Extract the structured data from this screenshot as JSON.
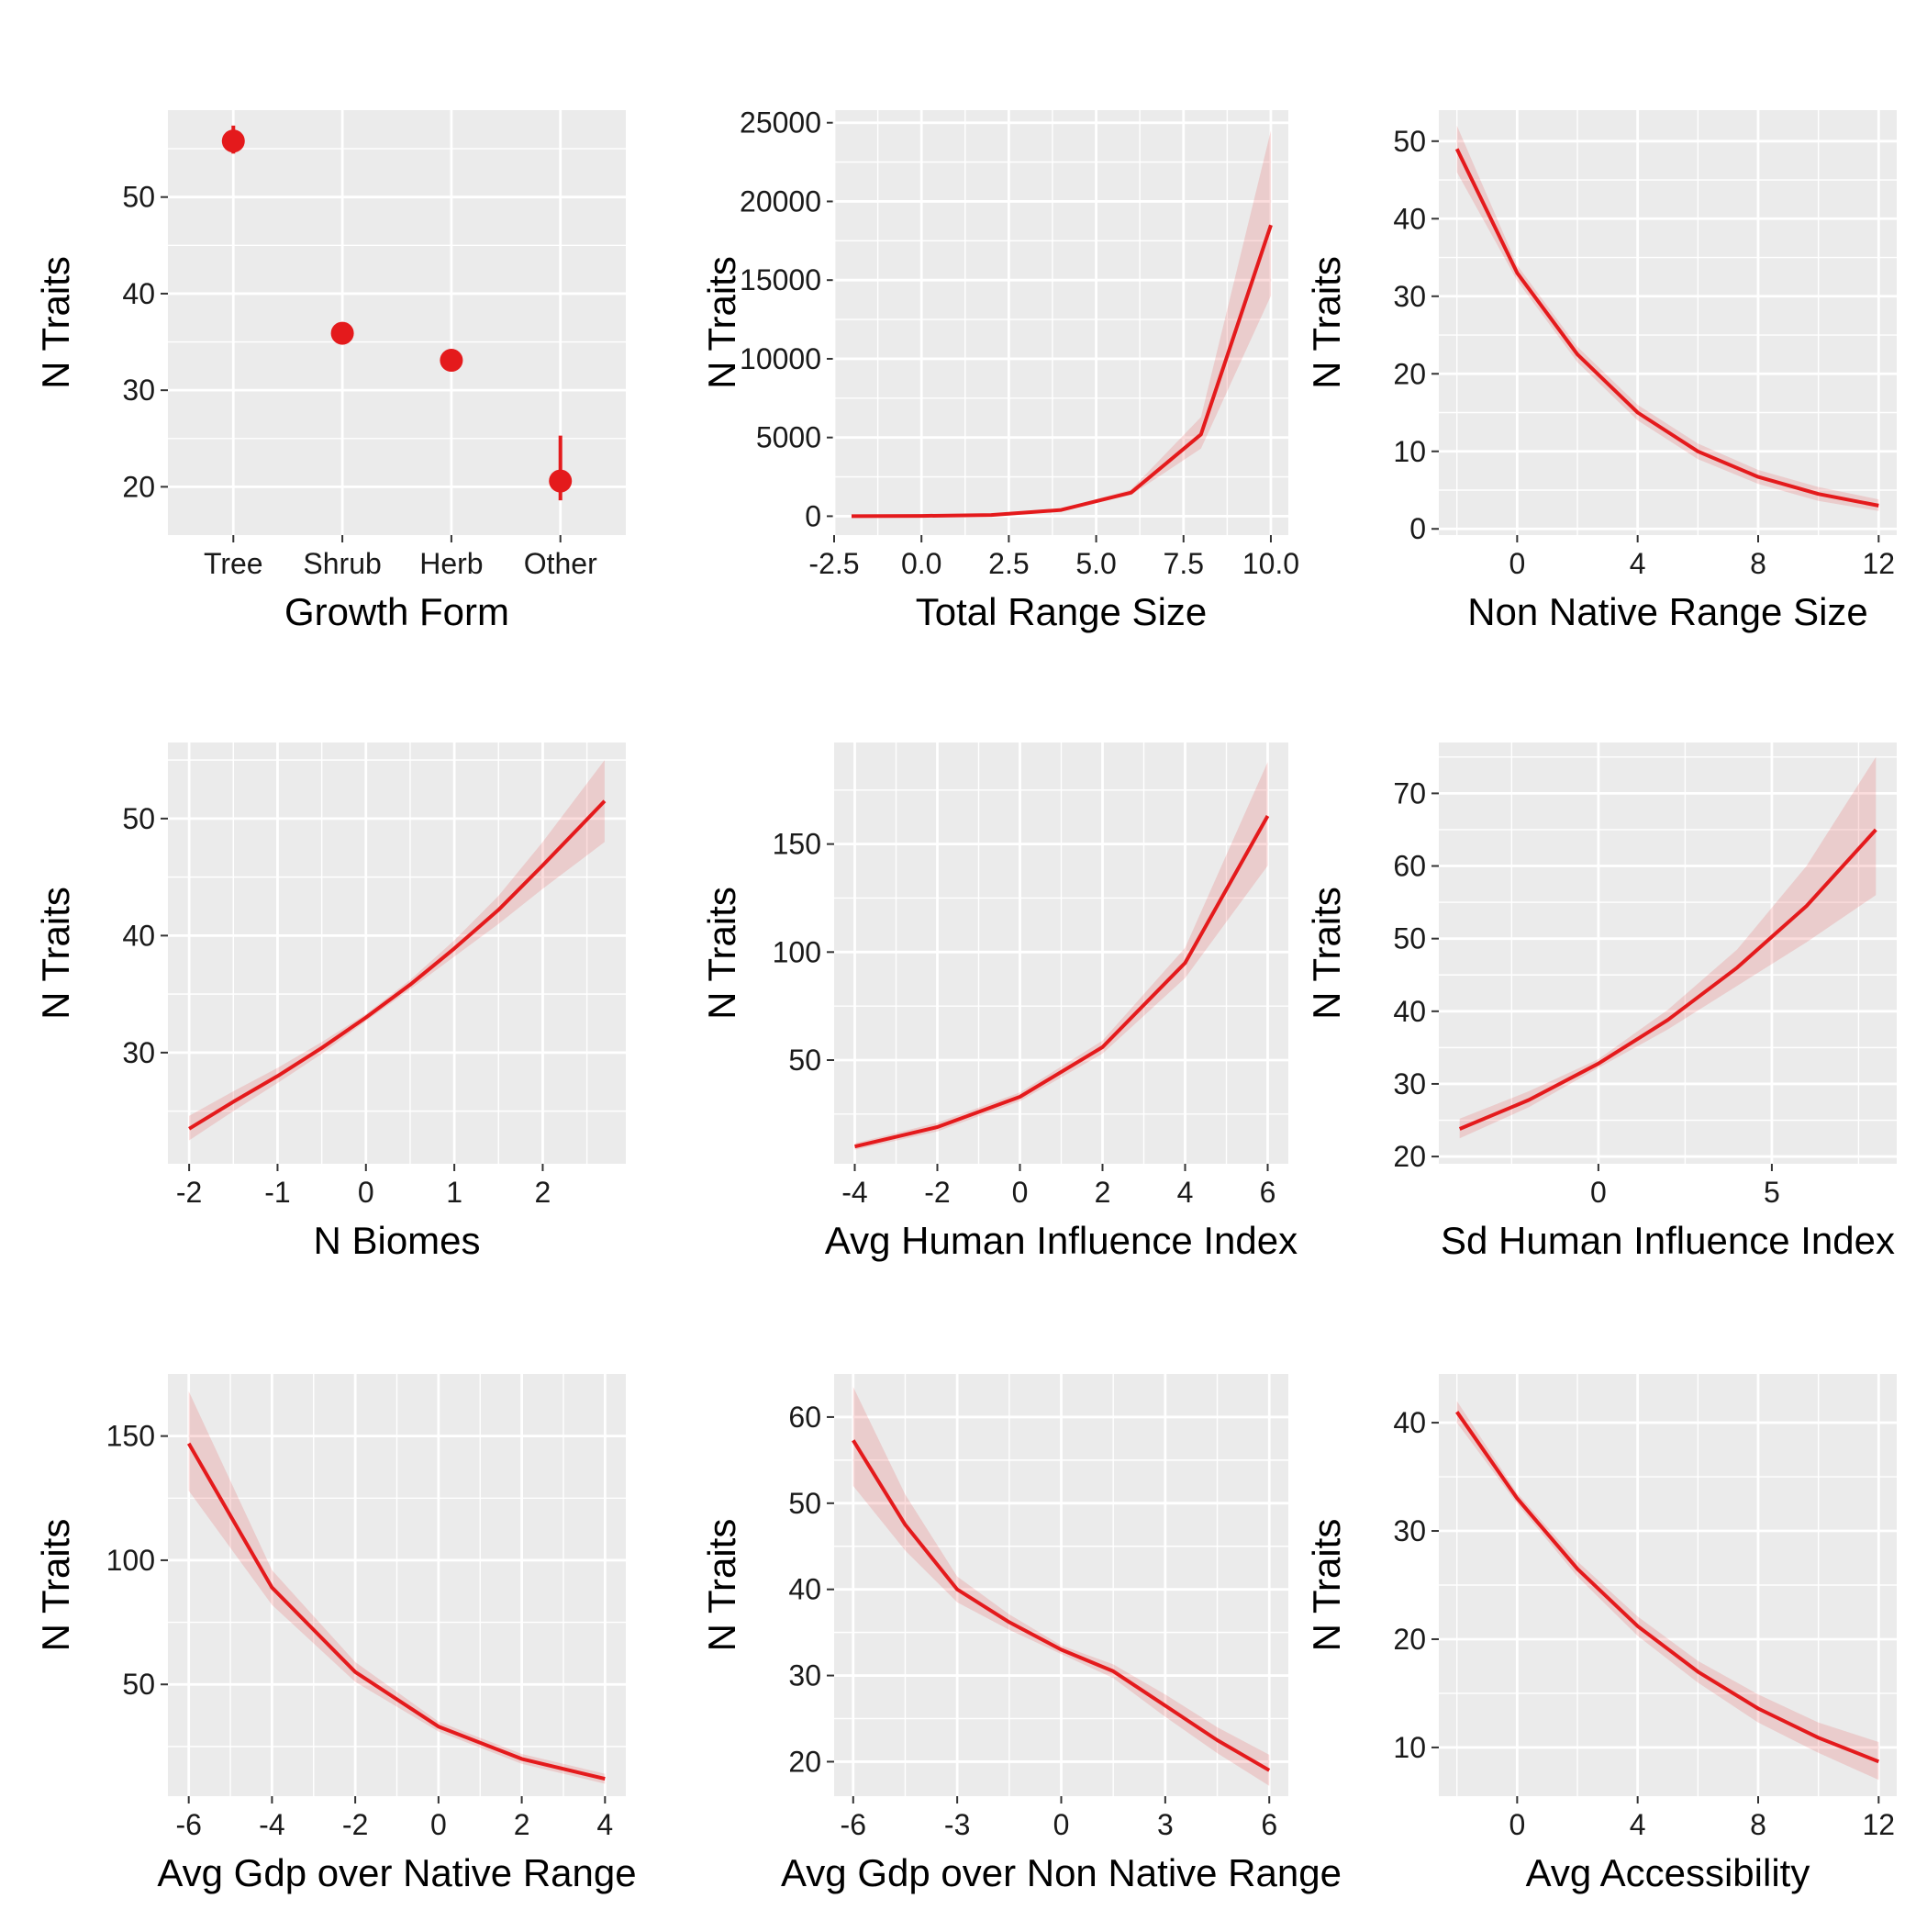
{
  "figure": {
    "accent_color": "#e41a1c",
    "ribbon_color": "#e41a1c",
    "panel_bg": "#ebebeb"
  },
  "chart_data": [
    {
      "type": "scatter",
      "categories": [
        "Tree",
        "Shrub",
        "Herb",
        "Other"
      ],
      "series": [
        {
          "values": [
            55.8,
            35.9,
            33.1,
            20.6
          ],
          "lower": [
            54.5,
            35.0,
            32.4,
            18.6
          ],
          "upper": [
            57.4,
            36.8,
            33.9,
            25.3
          ]
        }
      ],
      "xlabel": "Growth Form",
      "ylabel": "N Traits",
      "ylim": [
        15,
        59
      ],
      "yticks": [
        20,
        30,
        40,
        50
      ],
      "grid": true
    },
    {
      "type": "line",
      "x": [
        -2,
        0,
        2,
        4,
        6,
        8,
        10
      ],
      "series": [
        {
          "values": [
            2,
            20,
            80,
            400,
            1500,
            5200,
            18500
          ],
          "lower": [
            0,
            10,
            60,
            330,
            1350,
            4300,
            14000
          ],
          "upper": [
            5,
            30,
            100,
            480,
            1700,
            6300,
            24500
          ]
        }
      ],
      "xlabel": "Total Range Size",
      "ylabel": "N Traits",
      "xlim": [
        -2.5,
        10.5
      ],
      "ylim": [
        -1200,
        25800
      ],
      "xticks": [
        -2.5,
        0.0,
        2.5,
        5.0,
        7.5,
        10.0
      ],
      "xtick_labels": [
        "-2.5",
        "0.0",
        "2.5",
        "5.0",
        "7.5",
        "10.0"
      ],
      "yticks": [
        0,
        5000,
        10000,
        15000,
        20000,
        25000
      ],
      "grid": true
    },
    {
      "type": "line",
      "x": [
        -2,
        0,
        2,
        4,
        6,
        8,
        10,
        12
      ],
      "series": [
        {
          "values": [
            49,
            33,
            22.5,
            15,
            10,
            6.7,
            4.5,
            3
          ],
          "lower": [
            46,
            32,
            21.5,
            14,
            9,
            5.8,
            3.6,
            2.3
          ],
          "upper": [
            52,
            34,
            23.5,
            16,
            11,
            7.6,
            5.4,
            3.8
          ]
        }
      ],
      "xlabel": "Non Native Range Size",
      "ylabel": "N Traits",
      "xlim": [
        -2.6,
        12.6
      ],
      "ylim": [
        -0.8,
        54
      ],
      "xticks": [
        0,
        4,
        8,
        12
      ],
      "yticks": [
        0,
        10,
        20,
        30,
        40,
        50
      ],
      "grid": true
    },
    {
      "type": "line",
      "x": [
        -2,
        -1.5,
        -1,
        -0.5,
        0,
        0.5,
        1,
        1.5,
        2,
        2.7
      ],
      "series": [
        {
          "values": [
            23.5,
            25.8,
            28.0,
            30.4,
            33.0,
            35.8,
            38.9,
            42.2,
            46.0,
            51.5
          ],
          "lower": [
            22.5,
            25.0,
            27.4,
            29.9,
            32.7,
            35.4,
            38.2,
            41.0,
            44.0,
            48.0
          ],
          "upper": [
            24.6,
            26.7,
            28.7,
            30.9,
            33.3,
            36.2,
            39.6,
            43.4,
            48.0,
            55.0
          ]
        }
      ],
      "xlabel": "N Biomes",
      "ylabel": "N Traits",
      "xlim": [
        -2.24,
        2.94
      ],
      "ylim": [
        20.5,
        56.5
      ],
      "xticks": [
        -2,
        -1,
        0,
        1,
        2
      ],
      "yticks": [
        30,
        40,
        50
      ],
      "grid": true
    },
    {
      "type": "line",
      "x": [
        -4,
        -2,
        0,
        2,
        4,
        6
      ],
      "series": [
        {
          "values": [
            10,
            19,
            33,
            56,
            95,
            163
          ],
          "lower": [
            8.5,
            17,
            31,
            53,
            88,
            140
          ],
          "upper": [
            11.5,
            21,
            35,
            59,
            102,
            188
          ]
        }
      ],
      "xlabel": "Avg Human Influence Index",
      "ylabel": "N Traits",
      "xlim": [
        -4.5,
        6.5
      ],
      "ylim": [
        2,
        197
      ],
      "xticks": [
        -4,
        -2,
        0,
        2,
        4,
        6
      ],
      "yticks": [
        50,
        100,
        150
      ],
      "grid": true
    },
    {
      "type": "line",
      "x": [
        -4,
        -2,
        0,
        2,
        4,
        6,
        8
      ],
      "series": [
        {
          "values": [
            23.8,
            27.8,
            32.8,
            38.8,
            46,
            54.5,
            65
          ],
          "lower": [
            22.5,
            26.8,
            32.2,
            37.5,
            43.5,
            49.5,
            56
          ],
          "upper": [
            25.2,
            29,
            33.4,
            40.2,
            48.5,
            60,
            75
          ]
        }
      ],
      "xlabel": "Sd Human Influence Index",
      "ylabel": "N Traits",
      "xlim": [
        -4.6,
        8.6
      ],
      "ylim": [
        19,
        77
      ],
      "xticks": [
        0,
        5
      ],
      "yticks": [
        20,
        30,
        40,
        50,
        60,
        70
      ],
      "grid": true
    },
    {
      "type": "line",
      "x": [
        -6,
        -4,
        -2,
        0,
        2,
        4
      ],
      "series": [
        {
          "values": [
            147,
            89,
            55,
            33,
            20,
            12
          ],
          "lower": [
            128,
            82,
            51,
            31,
            18,
            10
          ],
          "upper": [
            168,
            96,
            59,
            35,
            22,
            14
          ]
        }
      ],
      "xlabel": "Avg Gdp over Native Range",
      "ylabel": "N Traits",
      "xlim": [
        -6.5,
        4.5
      ],
      "ylim": [
        5,
        175
      ],
      "xticks": [
        -6,
        -4,
        -2,
        0,
        2,
        4
      ],
      "yticks": [
        50,
        100,
        150
      ],
      "grid": true
    },
    {
      "type": "line",
      "x": [
        -6,
        -4.5,
        -3,
        -1.5,
        0,
        1.5,
        3,
        4.5,
        6
      ],
      "series": [
        {
          "values": [
            57.3,
            47.5,
            40.0,
            36.2,
            33.0,
            30.5,
            26.5,
            22.5,
            19.0
          ],
          "lower": [
            52.0,
            44.5,
            38.5,
            35.3,
            32.5,
            29.7,
            25.2,
            21.0,
            17.2
          ],
          "upper": [
            63.5,
            51.0,
            41.5,
            37.1,
            33.5,
            31.3,
            27.8,
            24.0,
            20.8
          ]
        }
      ],
      "xlabel": "Avg Gdp over Non Native Range",
      "ylabel": "N Traits",
      "xlim": [
        -6.55,
        6.55
      ],
      "ylim": [
        16,
        65
      ],
      "xticks": [
        -6,
        -3,
        0,
        3,
        6
      ],
      "yticks": [
        20,
        30,
        40,
        50,
        60
      ],
      "grid": true
    },
    {
      "type": "line",
      "x": [
        -2,
        0,
        2,
        4,
        6,
        8,
        10,
        12
      ],
      "series": [
        {
          "values": [
            41,
            33,
            26.5,
            21.2,
            17,
            13.6,
            10.9,
            8.7
          ],
          "lower": [
            40,
            32.5,
            25.8,
            20.3,
            16,
            12.3,
            9.5,
            7.0
          ],
          "upper": [
            42,
            33.5,
            27.2,
            22.1,
            18,
            14.9,
            12.3,
            10.5
          ]
        }
      ],
      "xlabel": "Avg Accessibility",
      "ylabel": "N Traits",
      "xlim": [
        -2.6,
        12.6
      ],
      "ylim": [
        5.5,
        44.5
      ],
      "xticks": [
        0,
        4,
        8,
        12
      ],
      "yticks": [
        10,
        20,
        30,
        40
      ],
      "grid": true
    }
  ]
}
